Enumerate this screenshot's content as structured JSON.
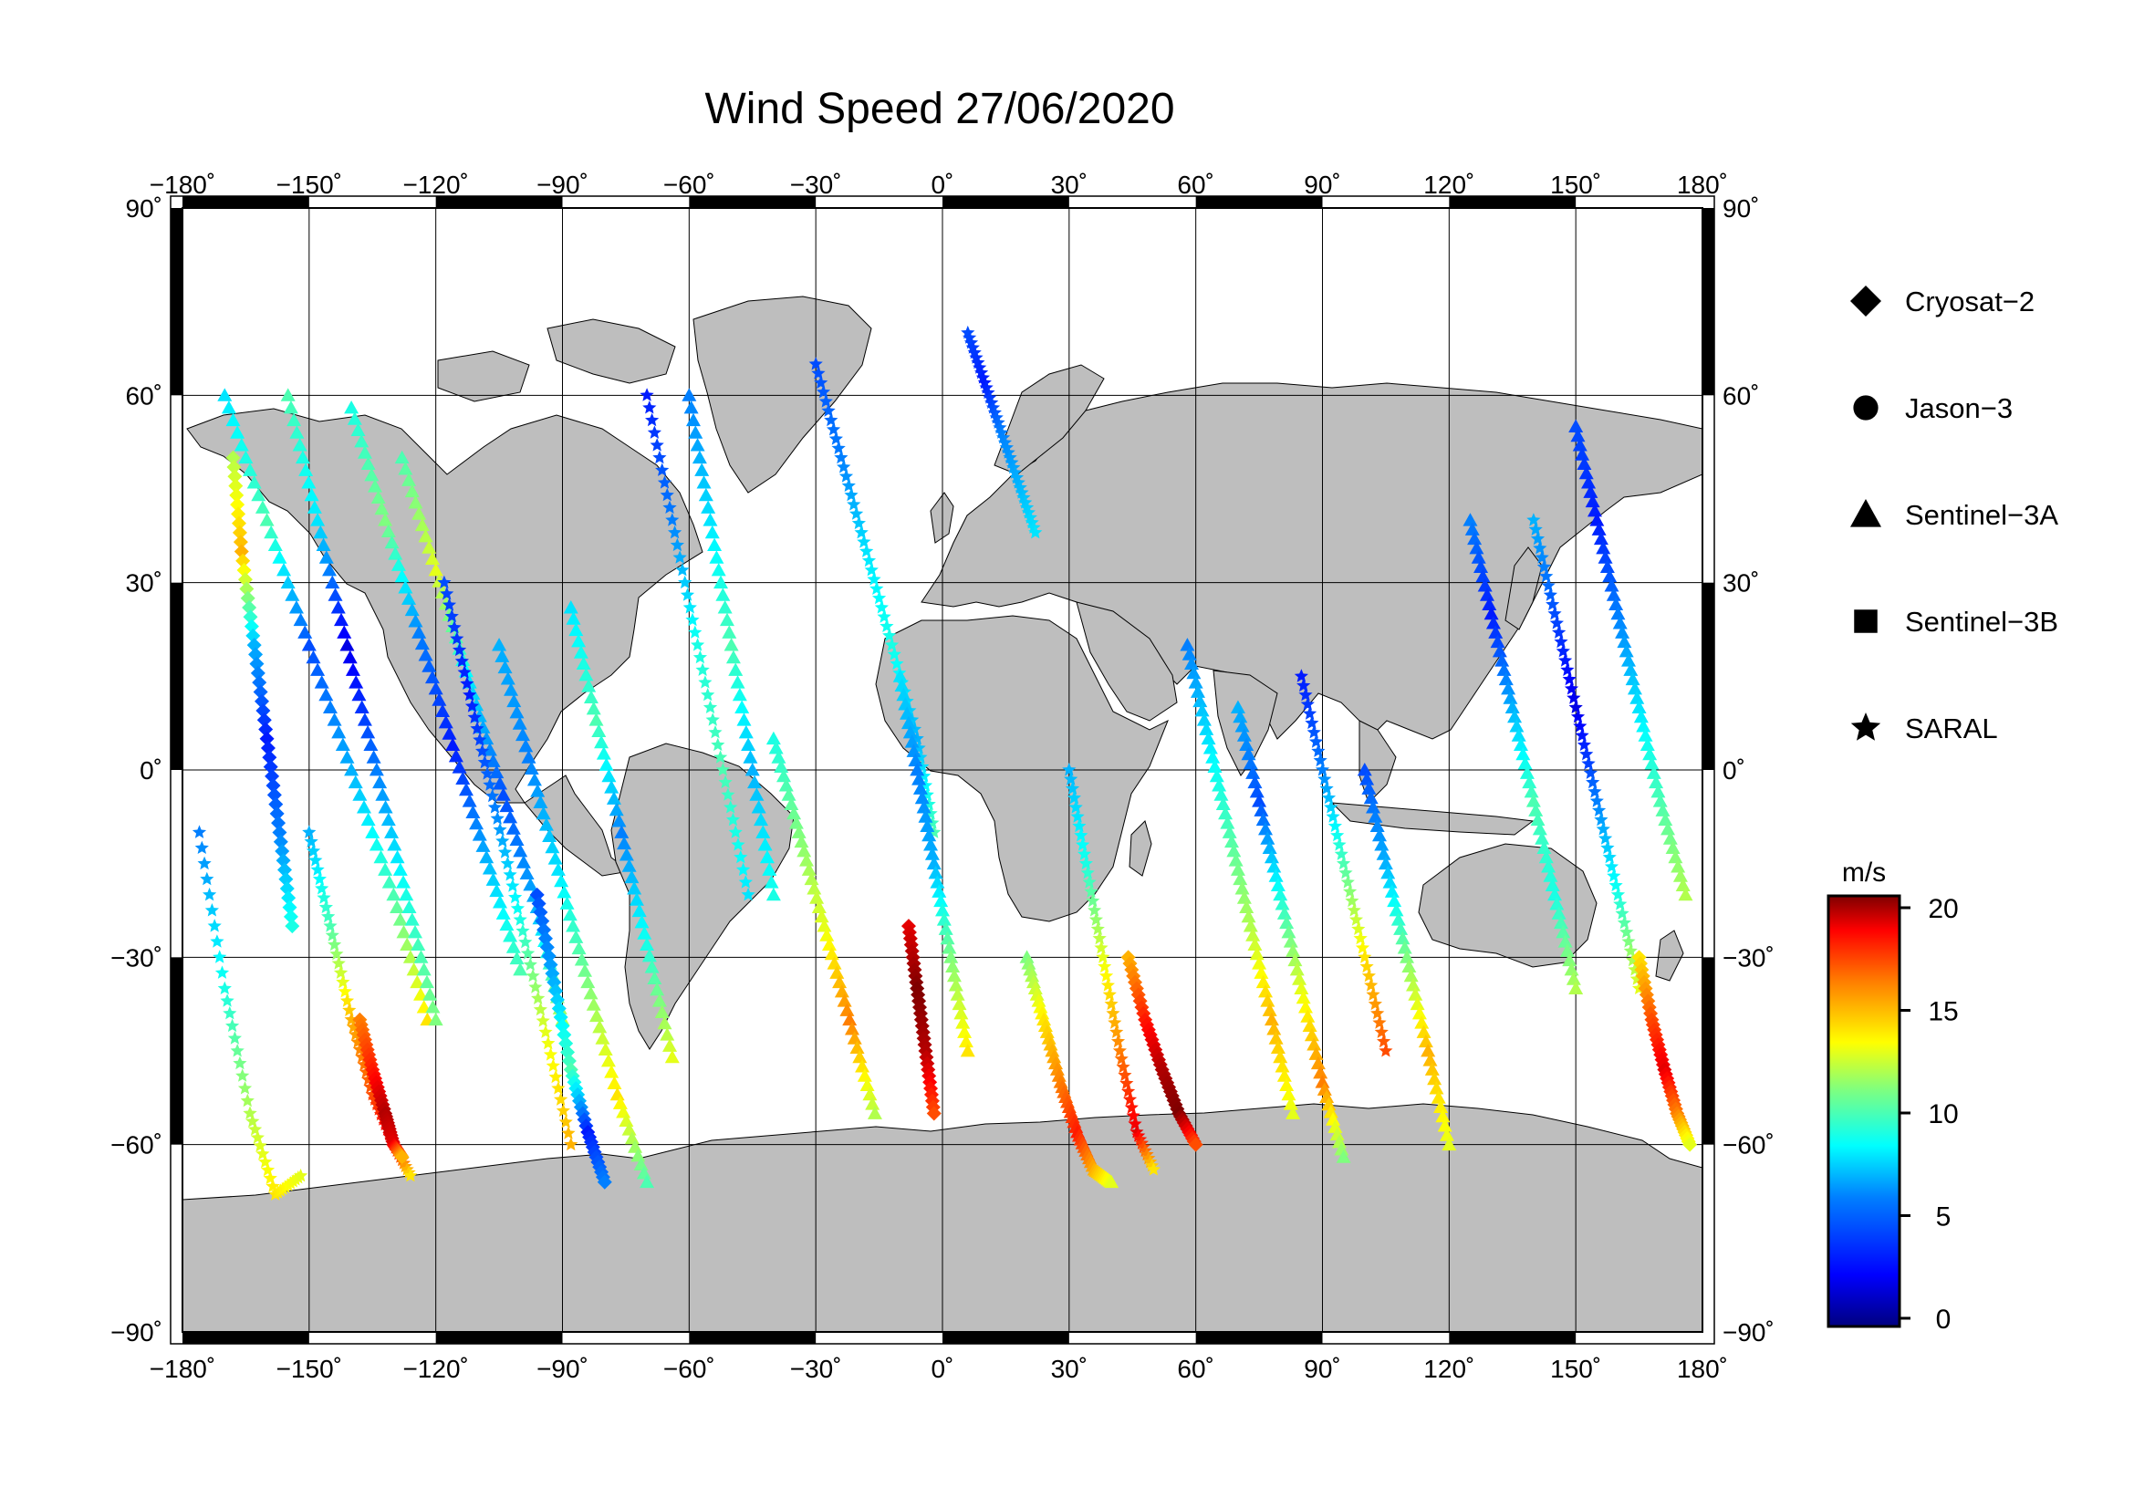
{
  "title": "Wind Speed 27/06/2020",
  "map": {
    "projection": "equirectangular",
    "lon_range": [
      -180,
      180
    ],
    "lat_range": [
      -90,
      90
    ],
    "lon_ticks": [
      "−180˚",
      "−150˚",
      "−120˚",
      "−90˚",
      "−60˚",
      "−30˚",
      "0˚",
      "30˚",
      "60˚",
      "90˚",
      "120˚",
      "150˚",
      "180˚"
    ],
    "lat_ticks_left": [
      "90˚",
      "60˚",
      "30˚",
      "0˚",
      "−30˚",
      "−60˚",
      "−90˚"
    ],
    "lat_ticks_right": [
      "90˚",
      "60˚",
      "30˚",
      "0˚",
      "−30˚",
      "−60˚",
      "−90˚"
    ],
    "grid": true,
    "land_color": "#bebebe",
    "ocean_color": "#ffffff",
    "frame_color": "#000000"
  },
  "legend": {
    "placement": "right",
    "items": [
      {
        "label": "Cryosat−2",
        "marker": "diamond"
      },
      {
        "label": "Jason−3",
        "marker": "circle"
      },
      {
        "label": "Sentinel−3A",
        "marker": "triangle"
      },
      {
        "label": "Sentinel−3B",
        "marker": "square"
      },
      {
        "label": "SARAL",
        "marker": "star"
      }
    ]
  },
  "colorbar": {
    "unit": "m/s",
    "min": 0,
    "max": 20,
    "ticks": [
      "20",
      "15",
      "10",
      "5",
      "0"
    ],
    "colormap": [
      "#00007f",
      "#0000ff",
      "#007fff",
      "#00ffff",
      "#7fff7f",
      "#ffff00",
      "#ff7f00",
      "#ff0000",
      "#7f0000"
    ]
  },
  "chart_data": {
    "type": "scatter",
    "title": "Wind Speed 27/06/2020",
    "xlabel": "",
    "ylabel": "",
    "xlim": [
      -180,
      180
    ],
    "ylim": [
      -90,
      90
    ],
    "value_range": [
      0,
      20
    ],
    "tracks": [
      {
        "sat": "star",
        "lon": [
          -176,
          -170,
          -164,
          -158,
          -152
        ],
        "lat": [
          -10,
          -35,
          -55,
          -68,
          -65
        ],
        "values": [
          5,
          8,
          11,
          13,
          12
        ]
      },
      {
        "sat": "triangle",
        "lon": [
          -170,
          -160,
          -150,
          -140,
          -130,
          -122
        ],
        "lat": [
          60,
          40,
          20,
          0,
          -20,
          -40
        ],
        "values": [
          7,
          9,
          4,
          6,
          9,
          13
        ]
      },
      {
        "sat": "diamond",
        "lon": [
          -168,
          -166,
          -163,
          -160,
          -157,
          -154
        ],
        "lat": [
          50,
          35,
          20,
          5,
          -10,
          -25
        ],
        "values": [
          11,
          14,
          6,
          3,
          5,
          8
        ]
      },
      {
        "sat": "triangle",
        "lon": [
          -155,
          -148,
          -141,
          -134,
          -127,
          -120
        ],
        "lat": [
          60,
          40,
          20,
          0,
          -20,
          -40
        ],
        "values": [
          9,
          7,
          2,
          5,
          8,
          10
        ]
      },
      {
        "sat": "star",
        "lon": [
          -150,
          -145,
          -140,
          -135,
          -130,
          -126
        ],
        "lat": [
          -10,
          -25,
          -40,
          -52,
          -60,
          -65
        ],
        "values": [
          6,
          9,
          14,
          16,
          18,
          13
        ]
      },
      {
        "sat": "diamond",
        "lon": [
          -138,
          -135,
          -132,
          -130,
          -128
        ],
        "lat": [
          -40,
          -48,
          -55,
          -60,
          -62
        ],
        "values": [
          15,
          17,
          19,
          18,
          14
        ]
      },
      {
        "sat": "triangle",
        "lon": [
          -140,
          -132,
          -124,
          -116,
          -108,
          -100
        ],
        "lat": [
          58,
          40,
          22,
          4,
          -14,
          -32
        ],
        "values": [
          8,
          10,
          5,
          3,
          6,
          9
        ]
      },
      {
        "sat": "triangle",
        "lon": [
          -128,
          -120,
          -112,
          -104,
          -96,
          -90
        ],
        "lat": [
          50,
          32,
          14,
          -4,
          -22,
          -40
        ],
        "values": [
          9,
          12,
          7,
          4,
          6,
          11
        ]
      },
      {
        "sat": "star",
        "lon": [
          -118,
          -112,
          -106,
          -100,
          -94,
          -88
        ],
        "lat": [
          30,
          12,
          -6,
          -24,
          -42,
          -60
        ],
        "values": [
          4,
          3,
          5,
          8,
          12,
          14
        ]
      },
      {
        "sat": "triangle",
        "lon": [
          -105,
          -98,
          -91,
          -84,
          -77,
          -70
        ],
        "lat": [
          20,
          2,
          -16,
          -34,
          -52,
          -66
        ],
        "values": [
          6,
          5,
          7,
          10,
          13,
          9
        ]
      },
      {
        "sat": "diamond",
        "lon": [
          -96,
          -92,
          -88,
          -84,
          -80
        ],
        "lat": [
          -20,
          -34,
          -48,
          -58,
          -66
        ],
        "values": [
          4,
          6,
          9,
          3,
          5
        ]
      },
      {
        "sat": "triangle",
        "lon": [
          -88,
          -82,
          -76,
          -70,
          -64
        ],
        "lat": [
          26,
          8,
          -10,
          -28,
          -46
        ],
        "values": [
          7,
          9,
          5,
          8,
          12
        ]
      },
      {
        "sat": "star",
        "lon": [
          -70,
          -64,
          -58,
          -52,
          -46
        ],
        "lat": [
          60,
          40,
          20,
          0,
          -20
        ],
        "values": [
          3,
          5,
          8,
          9,
          7
        ]
      },
      {
        "sat": "triangle",
        "lon": [
          -60,
          -55,
          -50,
          -45,
          -40
        ],
        "lat": [
          60,
          40,
          20,
          0,
          -20
        ],
        "values": [
          5,
          7,
          9,
          6,
          8
        ]
      },
      {
        "sat": "star",
        "lon": [
          -30,
          -24,
          -18,
          -12,
          -6,
          -2
        ],
        "lat": [
          65,
          50,
          35,
          20,
          5,
          -10
        ],
        "values": [
          4,
          5,
          7,
          8,
          6,
          9
        ]
      },
      {
        "sat": "triangle",
        "lon": [
          -40,
          -34,
          -28,
          -22,
          -16
        ],
        "lat": [
          5,
          -10,
          -25,
          -40,
          -55
        ],
        "values": [
          8,
          10,
          12,
          15,
          11
        ]
      },
      {
        "sat": "diamond",
        "lon": [
          -8,
          -6,
          -4,
          -2
        ],
        "lat": [
          -25,
          -35,
          -45,
          -55
        ],
        "values": [
          18,
          20,
          19,
          16
        ]
      },
      {
        "sat": "triangle",
        "lon": [
          -10,
          -6,
          -2,
          2,
          6
        ],
        "lat": [
          15,
          0,
          -15,
          -30,
          -45
        ],
        "values": [
          7,
          5,
          6,
          10,
          13
        ]
      },
      {
        "sat": "star",
        "lon": [
          6,
          10,
          14,
          18,
          22
        ],
        "lat": [
          70,
          62,
          54,
          46,
          38
        ],
        "values": [
          4,
          3,
          5,
          6,
          7
        ]
      },
      {
        "sat": "triangle",
        "lon": [
          20,
          24,
          28,
          32,
          36,
          40
        ],
        "lat": [
          -30,
          -40,
          -50,
          -58,
          -64,
          -66
        ],
        "values": [
          10,
          13,
          15,
          17,
          14,
          12
        ]
      },
      {
        "sat": "star",
        "lon": [
          30,
          34,
          38,
          42,
          46,
          50
        ],
        "lat": [
          0,
          -15,
          -30,
          -45,
          -58,
          -64
        ],
        "values": [
          6,
          8,
          12,
          15,
          18,
          13
        ]
      },
      {
        "sat": "diamond",
        "lon": [
          44,
          48,
          52,
          56,
          60
        ],
        "lat": [
          -30,
          -40,
          -48,
          -55,
          -60
        ],
        "values": [
          14,
          17,
          19,
          20,
          16
        ]
      },
      {
        "sat": "triangle",
        "lon": [
          58,
          63,
          68,
          73,
          78,
          83
        ],
        "lat": [
          20,
          5,
          -10,
          -25,
          -40,
          -55
        ],
        "values": [
          5,
          7,
          9,
          11,
          14,
          12
        ]
      },
      {
        "sat": "triangle",
        "lon": [
          70,
          75,
          80,
          85,
          90,
          95
        ],
        "lat": [
          10,
          -5,
          -20,
          -35,
          -50,
          -62
        ],
        "values": [
          6,
          4,
          8,
          12,
          15,
          10
        ]
      },
      {
        "sat": "star",
        "lon": [
          85,
          90,
          95,
          100,
          105
        ],
        "lat": [
          15,
          0,
          -15,
          -30,
          -45
        ],
        "values": [
          3,
          5,
          9,
          13,
          16
        ]
      },
      {
        "sat": "triangle",
        "lon": [
          100,
          105,
          110,
          115,
          120
        ],
        "lat": [
          0,
          -15,
          -30,
          -45,
          -60
        ],
        "values": [
          4,
          6,
          10,
          14,
          12
        ]
      },
      {
        "sat": "triangle",
        "lon": [
          125,
          130,
          135,
          140,
          145,
          150
        ],
        "lat": [
          40,
          25,
          10,
          -5,
          -20,
          -35
        ],
        "values": [
          5,
          3,
          6,
          9,
          8,
          11
        ]
      },
      {
        "sat": "star",
        "lon": [
          140,
          145,
          150,
          155,
          160,
          165
        ],
        "lat": [
          40,
          25,
          10,
          -5,
          -20,
          -35
        ],
        "values": [
          6,
          4,
          2,
          5,
          8,
          12
        ]
      },
      {
        "sat": "triangle",
        "lon": [
          150,
          155,
          160,
          165,
          170,
          176
        ],
        "lat": [
          55,
          40,
          25,
          10,
          -5,
          -20
        ],
        "values": [
          4,
          3,
          5,
          7,
          9,
          11
        ]
      },
      {
        "sat": "diamond",
        "lon": [
          165,
          168,
          171,
          174,
          177
        ],
        "lat": [
          -30,
          -40,
          -48,
          -55,
          -60
        ],
        "values": [
          13,
          16,
          18,
          15,
          12
        ]
      }
    ]
  }
}
